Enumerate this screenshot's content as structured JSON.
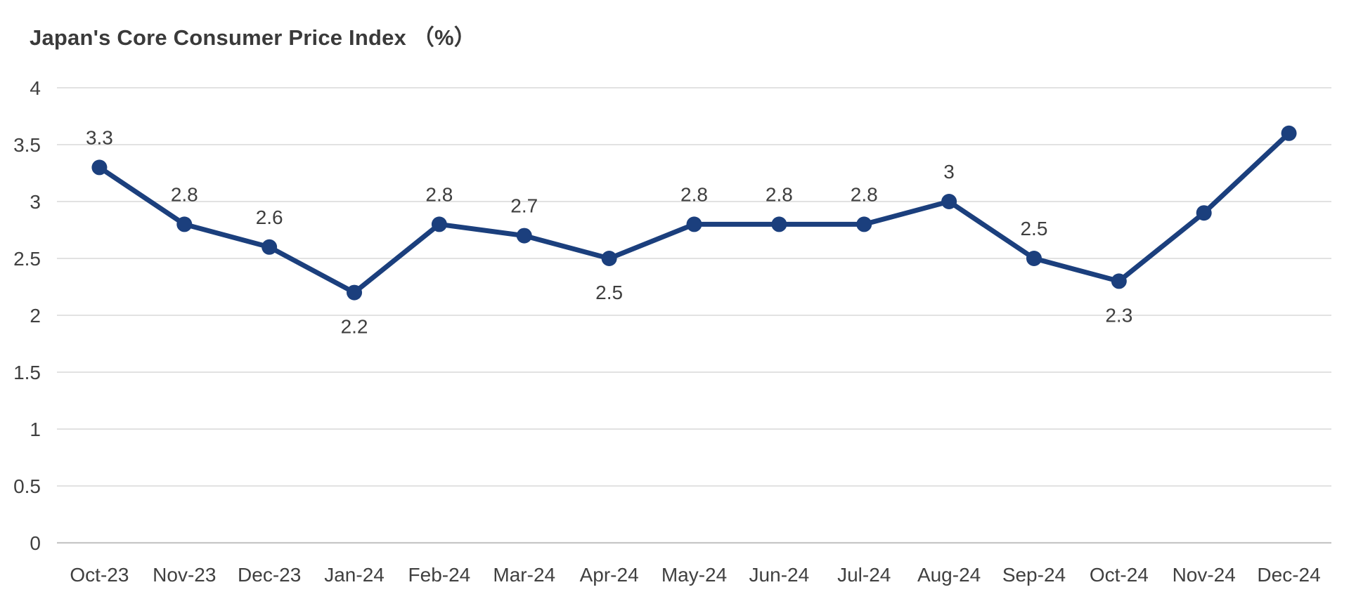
{
  "chart_data": {
    "type": "line",
    "title": "Japan's Core Consumer Price Index （%）",
    "categories": [
      "Oct-23",
      "Nov-23",
      "Dec-23",
      "Jan-24",
      "Feb-24",
      "Mar-24",
      "Apr-24",
      "May-24",
      "Jun-24",
      "Jul-24",
      "Aug-24",
      "Sep-24",
      "Oct-24",
      "Nov-24",
      "Dec-24"
    ],
    "values": [
      3.3,
      2.8,
      2.6,
      2.2,
      2.8,
      2.7,
      2.5,
      2.8,
      2.8,
      2.8,
      3,
      2.5,
      2.3,
      2.9,
      3.6
    ],
    "data_labels": [
      "3.3",
      "2.8",
      "2.6",
      "2.2",
      "2.8",
      "2.7",
      "2.5",
      "2.8",
      "2.8",
      "2.8",
      "3",
      "2.5",
      "2.3",
      "",
      ""
    ],
    "label_positions": [
      "above",
      "above",
      "above",
      "below",
      "above",
      "above",
      "below",
      "above",
      "above",
      "above",
      "above",
      "above",
      "below",
      "none",
      "none"
    ],
    "y_ticks": [
      4,
      3.5,
      3,
      2.5,
      2,
      1.5,
      1,
      0.5,
      0
    ],
    "y_tick_labels": [
      "4",
      "3.5",
      "3",
      "2.5",
      "2",
      "1.5",
      "1",
      "0.5",
      "0"
    ],
    "ylim": [
      0,
      4
    ],
    "xlabel": "",
    "ylabel": "",
    "grid": true,
    "legend": "none",
    "colors": {
      "line": "#1b3f7d",
      "marker": "#1b3f7d",
      "gridline": "#d9d9d9",
      "axis_line": "#c6c6c6",
      "title_text": "#3a3a3a",
      "tick_text": "#404040",
      "data_label_text": "#3f3f3f",
      "background": "#ffffff"
    }
  }
}
